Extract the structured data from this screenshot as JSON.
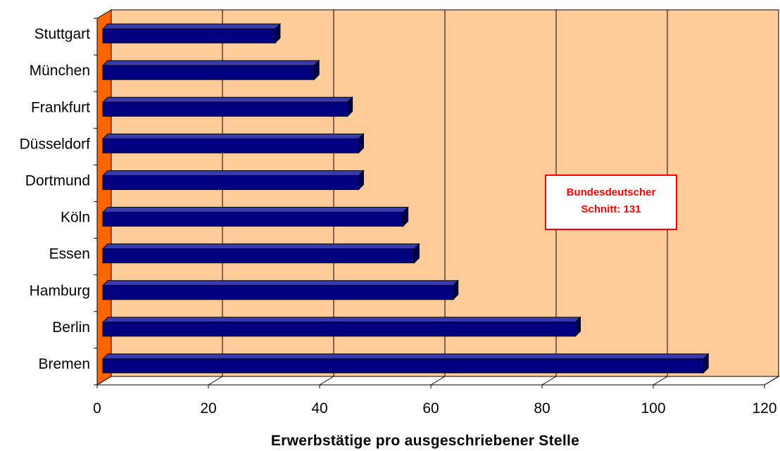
{
  "chart_data": {
    "type": "bar",
    "orientation": "horizontal",
    "style": "3d",
    "categories": [
      "Bremen",
      "Berlin",
      "Hamburg",
      "Essen",
      "Köln",
      "Dortmund",
      "Düsseldorf",
      "Frankfurt",
      "München",
      "Stuttgart"
    ],
    "values": [
      108,
      85,
      63,
      56,
      54,
      46,
      46,
      44,
      38,
      31
    ],
    "xlabel": "Erwerbstätige pro ausgeschriebener Stelle",
    "ylabel": "",
    "xlim": [
      0,
      120
    ],
    "xticks": [
      "0",
      "20",
      "40",
      "60",
      "80",
      "100",
      "120"
    ],
    "grid": "vertical",
    "annotation": {
      "line1": "Bundesdeutscher",
      "line2": "Schnitt: 131",
      "color": "#ff0000"
    },
    "colors": {
      "bar_front": "#000080",
      "bar_top": "#3a3ab0",
      "bar_side": "#00004a",
      "plot_back": "#ffcc99",
      "left_wall": "#ff6600",
      "grid": "#000000"
    }
  }
}
